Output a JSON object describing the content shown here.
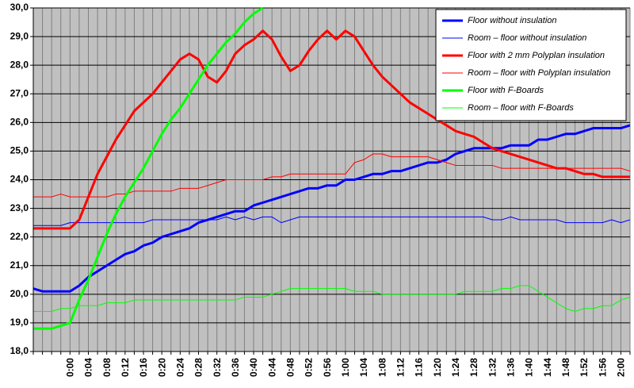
{
  "chart_data": {
    "type": "line",
    "categories": [
      null,
      null,
      null,
      null,
      "0:00",
      null,
      "0:04",
      null,
      "0:08",
      null,
      "0:12",
      null,
      "0:16",
      null,
      "0:20",
      null,
      "0:24",
      null,
      "0:28",
      null,
      "0:32",
      null,
      "0:36",
      null,
      "0:40",
      null,
      "0:44",
      null,
      "0:48",
      null,
      "0:52",
      null,
      "0:56",
      null,
      "1:00",
      null,
      "1:04",
      null,
      "1:08",
      null,
      "1:12",
      null,
      "1:16",
      null,
      "1:20",
      null,
      "1:24",
      null,
      "1:28",
      null,
      "1:32",
      null,
      "1:36",
      null,
      "1:40",
      null,
      "1:44",
      null,
      "1:48",
      null,
      "1:52",
      null,
      "1:56",
      null,
      "2:00",
      null
    ],
    "series": [
      {
        "name": "Floor without insulation",
        "color": "#0000ff",
        "line_width": 3,
        "values": [
          20.2,
          20.1,
          20.1,
          20.1,
          20.1,
          20.3,
          20.6,
          20.8,
          21.0,
          21.2,
          21.4,
          21.5,
          21.7,
          21.8,
          22.0,
          22.1,
          22.2,
          22.3,
          22.5,
          22.6,
          22.7,
          22.8,
          22.9,
          22.9,
          23.1,
          23.2,
          23.3,
          23.4,
          23.5,
          23.6,
          23.7,
          23.7,
          23.8,
          23.8,
          24.0,
          24.0,
          24.1,
          24.2,
          24.2,
          24.3,
          24.3,
          24.4,
          24.5,
          24.6,
          24.6,
          24.7,
          24.9,
          25.0,
          25.1,
          25.1,
          25.1,
          25.1,
          25.2,
          25.2,
          25.2,
          25.4,
          25.4,
          25.5,
          25.6,
          25.6,
          25.7,
          25.8,
          25.8,
          25.8,
          25.8,
          25.9
        ]
      },
      {
        "name": "Room – floor without insulation",
        "color": "#0000ff",
        "line_width": 1,
        "values": [
          22.4,
          22.4,
          22.4,
          22.4,
          22.5,
          22.5,
          22.5,
          22.5,
          22.5,
          22.5,
          22.5,
          22.5,
          22.5,
          22.6,
          22.6,
          22.6,
          22.6,
          22.6,
          22.6,
          22.6,
          22.6,
          22.7,
          22.6,
          22.7,
          22.6,
          22.7,
          22.7,
          22.5,
          22.6,
          22.7,
          22.7,
          22.7,
          22.7,
          22.7,
          22.7,
          22.7,
          22.7,
          22.7,
          22.7,
          22.7,
          22.7,
          22.7,
          22.7,
          22.7,
          22.7,
          22.7,
          22.7,
          22.7,
          22.7,
          22.7,
          22.6,
          22.6,
          22.7,
          22.6,
          22.6,
          22.6,
          22.6,
          22.6,
          22.5,
          22.5,
          22.5,
          22.5,
          22.5,
          22.6,
          22.5,
          22.6
        ]
      },
      {
        "name": "Floor with 2 mm Polyplan insulation",
        "color": "#ff0000",
        "line_width": 3,
        "values": [
          22.3,
          22.3,
          22.3,
          22.3,
          22.3,
          22.6,
          23.4,
          24.2,
          24.8,
          25.4,
          25.9,
          26.4,
          26.7,
          27.0,
          27.4,
          27.8,
          28.2,
          28.4,
          28.2,
          27.6,
          27.4,
          27.8,
          28.4,
          28.7,
          28.9,
          29.2,
          28.9,
          28.3,
          27.8,
          28.0,
          28.5,
          28.9,
          29.2,
          28.9,
          29.2,
          29.0,
          28.5,
          28.0,
          27.6,
          27.3,
          27.0,
          26.7,
          26.5,
          26.3,
          26.1,
          25.9,
          25.7,
          25.6,
          25.5,
          25.3,
          25.1,
          25.0,
          24.9,
          24.8,
          24.7,
          24.6,
          24.5,
          24.4,
          24.4,
          24.3,
          24.2,
          24.2,
          24.1,
          24.1,
          24.1,
          24.1
        ]
      },
      {
        "name": "Room – floor with Polyplan insulation",
        "color": "#ff0000",
        "line_width": 1,
        "values": [
          23.4,
          23.4,
          23.4,
          23.5,
          23.4,
          23.4,
          23.4,
          23.4,
          23.4,
          23.5,
          23.5,
          23.6,
          23.6,
          23.6,
          23.6,
          23.6,
          23.7,
          23.7,
          23.7,
          23.8,
          23.9,
          24.0,
          24.0,
          24.0,
          24.0,
          24.0,
          24.1,
          24.1,
          24.2,
          24.2,
          24.2,
          24.2,
          24.2,
          24.2,
          24.2,
          24.6,
          24.7,
          24.9,
          24.9,
          24.8,
          24.8,
          24.8,
          24.8,
          24.8,
          24.7,
          24.6,
          24.5,
          24.5,
          24.5,
          24.5,
          24.5,
          24.4,
          24.4,
          24.4,
          24.4,
          24.4,
          24.4,
          24.4,
          24.4,
          24.4,
          24.4,
          24.4,
          24.4,
          24.4,
          24.4,
          24.3
        ]
      },
      {
        "name": "Floor with F-Boards",
        "color": "#00ff00",
        "line_width": 3,
        "values": [
          18.8,
          18.8,
          18.8,
          18.9,
          19.0,
          19.8,
          20.5,
          21.3,
          22.1,
          22.8,
          23.4,
          23.9,
          24.4,
          25.0,
          25.6,
          26.1,
          26.5,
          27.0,
          27.5,
          28.0,
          28.4,
          28.8,
          29.1,
          29.5,
          29.8,
          30.0,
          null,
          null,
          null,
          null,
          null,
          null,
          null,
          null,
          null,
          null,
          null,
          null,
          null,
          null,
          null,
          null,
          null,
          null,
          null,
          null,
          null,
          null,
          null,
          null,
          null,
          null,
          null,
          null,
          null,
          null,
          null,
          null,
          null,
          null,
          null,
          null,
          null,
          null,
          null,
          null
        ]
      },
      {
        "name": "Room – floor with F-Boards",
        "color": "#00ff00",
        "line_width": 1,
        "values": [
          19.4,
          19.4,
          19.4,
          19.5,
          19.5,
          19.6,
          19.6,
          19.6,
          19.7,
          19.7,
          19.7,
          19.8,
          19.8,
          19.8,
          19.8,
          19.8,
          19.8,
          19.8,
          19.8,
          19.8,
          19.8,
          19.8,
          19.8,
          19.9,
          19.9,
          19.9,
          20.0,
          20.1,
          20.2,
          20.2,
          20.2,
          20.2,
          20.2,
          20.2,
          20.2,
          20.1,
          20.1,
          20.1,
          20.0,
          20.0,
          20.0,
          20.0,
          20.0,
          20.0,
          20.0,
          20.0,
          20.0,
          20.1,
          20.1,
          20.1,
          20.1,
          20.2,
          20.2,
          20.3,
          20.3,
          20.1,
          19.9,
          19.7,
          19.5,
          19.4,
          19.5,
          19.5,
          19.6,
          19.6,
          19.8,
          19.9
        ]
      }
    ],
    "ylim": [
      18,
      30
    ],
    "yticks": [
      {
        "value": 18,
        "label": "18,0"
      },
      {
        "value": 19,
        "label": "19,0"
      },
      {
        "value": 20,
        "label": "20,0"
      },
      {
        "value": 21,
        "label": "21,0"
      },
      {
        "value": 22,
        "label": "22,0"
      },
      {
        "value": 23,
        "label": "23,0"
      },
      {
        "value": 24,
        "label": "24,0"
      },
      {
        "value": 25,
        "label": "25,0"
      },
      {
        "value": 26,
        "label": "26,0"
      },
      {
        "value": 27,
        "label": "27,0"
      },
      {
        "value": 28,
        "label": "28,0"
      },
      {
        "value": 29,
        "label": "29,0"
      },
      {
        "value": 30,
        "label": "30,0"
      }
    ],
    "grid": true,
    "legend": "top-right"
  }
}
